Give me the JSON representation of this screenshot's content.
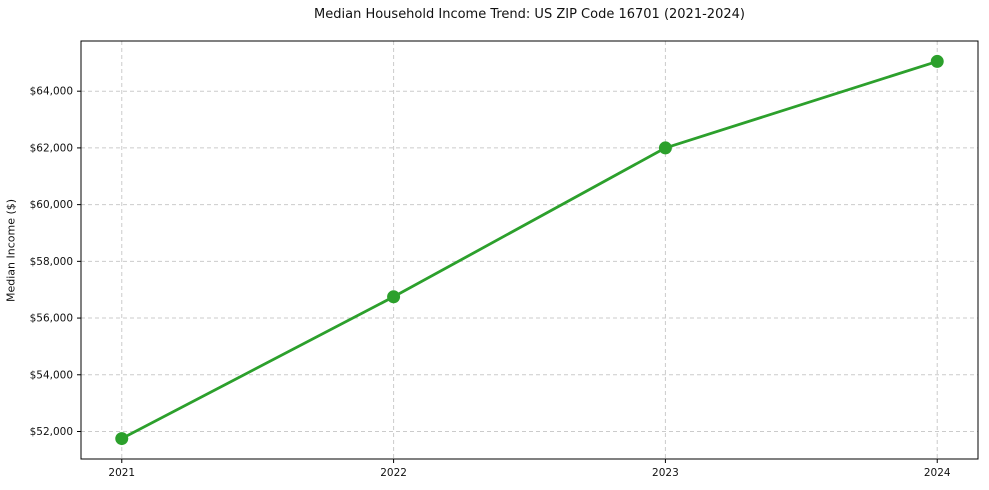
{
  "chart_data": {
    "type": "line",
    "title": "Median Household Income Trend: US ZIP Code 16701 (2021-2024)",
    "xlabel": "",
    "ylabel": "Median Income ($)",
    "x": [
      2021,
      2022,
      2023,
      2024
    ],
    "series": [
      {
        "name": "Median Household Income",
        "values": [
          51750,
          56750,
          62000,
          65050
        ],
        "color": "#2ca02c",
        "marker": "circle",
        "line_width": 2.8,
        "marker_radius": 6.5
      }
    ],
    "x_ticks": [
      2021,
      2022,
      2023,
      2024
    ],
    "x_tick_labels": [
      "2021",
      "2022",
      "2023",
      "2024"
    ],
    "y_ticks": [
      52000,
      54000,
      56000,
      58000,
      60000,
      62000,
      64000
    ],
    "y_tick_labels": [
      "$52,000",
      "$54,000",
      "$56,000",
      "$58,000",
      "$60,000",
      "$62,000",
      "$64,000"
    ],
    "xlim": [
      2020.85,
      2024.15
    ],
    "ylim": [
      51030,
      65770
    ],
    "grid": true,
    "grid_style": "dashed",
    "grid_color": "#cbcbcb",
    "legend": false,
    "background": "#ffffff",
    "spine_color": "#000000"
  }
}
